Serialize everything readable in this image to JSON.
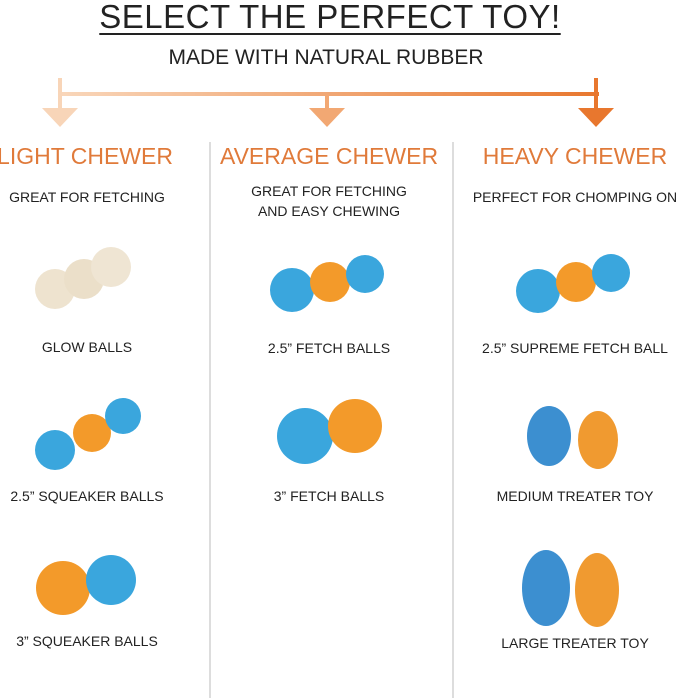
{
  "title": "SELECT THE PERFECT TOY!",
  "subtitle": "MADE WITH NATURAL RUBBER",
  "colors": {
    "light": "#f7cfae",
    "average": "#f0a06a",
    "heavy": "#e8772e",
    "heading": "#e07a3a",
    "blue": "#3aa6dd",
    "orange": "#f39a2a",
    "glow": "#eee3cf"
  },
  "columns": [
    {
      "heading": "LIGHT CHEWER",
      "description": [
        "GREAT FOR FETCHING"
      ],
      "items": [
        {
          "label": "GLOW BALLS"
        },
        {
          "label": "2.5” SQUEAKER BALLS"
        },
        {
          "label": "3” SQUEAKER BALLS"
        }
      ]
    },
    {
      "heading": "AVERAGE CHEWER",
      "description": [
        "GREAT FOR FETCHING",
        "AND EASY CHEWING"
      ],
      "items": [
        {
          "label": "2.5” FETCH BALLS"
        },
        {
          "label": "3” FETCH BALLS"
        }
      ]
    },
    {
      "heading": "HEAVY CHEWER",
      "description": [
        "PERFECT FOR CHOMPING ON"
      ],
      "items": [
        {
          "label": "2.5” SUPREME FETCH BALL"
        },
        {
          "label": "MEDIUM TREATER TOY"
        },
        {
          "label": "LARGE TREATER TOY"
        }
      ]
    }
  ]
}
